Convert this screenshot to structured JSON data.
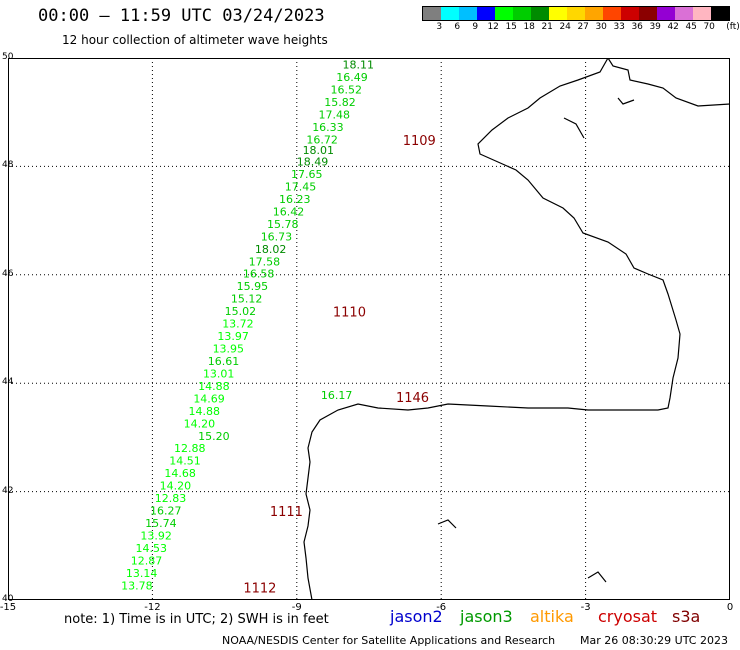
{
  "header": {
    "title": "00:00 – 11:59 UTC 03/24/2023",
    "subtitle": "12 hour collection of altimeter wave heights"
  },
  "colorbar": {
    "colors": [
      "#7f7f7f",
      "#00ffff",
      "#00bfff",
      "#0000ff",
      "#00ff00",
      "#00cd00",
      "#008b00",
      "#ffff00",
      "#ffd700",
      "#ffa500",
      "#ff4500",
      "#cd0000",
      "#8b0000",
      "#9400d3",
      "#da70d6",
      "#ffb6c1",
      "#000000"
    ],
    "labels": [
      "3",
      "6",
      "9",
      "12",
      "15",
      "18",
      "21",
      "24",
      "27",
      "30",
      "33",
      "36",
      "39",
      "42",
      "45",
      "70",
      "(ft)"
    ]
  },
  "axes": {
    "lon_ticks": [
      -15,
      -12,
      -9,
      -6,
      -3,
      0
    ],
    "lat_ticks": [
      40,
      42,
      44,
      46,
      48,
      50
    ],
    "lon_range": [
      -15,
      0
    ],
    "lat_range": [
      40,
      50
    ]
  },
  "tracks": [
    {
      "satellite": "jason3",
      "id_label": "1109",
      "points": [
        {
          "lat": 49.88,
          "lon": -8.05,
          "v": "18.11"
        },
        {
          "lat": 49.65,
          "lon": -8.18,
          "v": "16.49"
        },
        {
          "lat": 49.42,
          "lon": -8.3,
          "v": "16.52"
        },
        {
          "lat": 49.19,
          "lon": -8.43,
          "v": "15.82"
        },
        {
          "lat": 48.96,
          "lon": -8.55,
          "v": "17.48"
        },
        {
          "lat": 48.73,
          "lon": -8.68,
          "v": "16.33"
        },
        {
          "lat": 48.5,
          "lon": -8.8,
          "v": "16.72"
        },
        {
          "lat": 48.3,
          "lon": -8.88,
          "v": "18.01"
        },
        {
          "lat": 48.09,
          "lon": -9.0,
          "v": "18.49"
        },
        {
          "lat": 47.86,
          "lon": -9.12,
          "v": "17.65"
        },
        {
          "lat": 47.63,
          "lon": -9.25,
          "v": "17.45"
        },
        {
          "lat": 47.4,
          "lon": -9.37,
          "v": "16.23"
        },
        {
          "lat": 47.17,
          "lon": -9.5,
          "v": "16.42"
        },
        {
          "lat": 46.94,
          "lon": -9.62,
          "v": "15.78"
        },
        {
          "lat": 46.71,
          "lon": -9.75,
          "v": "16.73"
        },
        {
          "lat": 46.48,
          "lon": -9.87,
          "v": "18.02"
        },
        {
          "lat": 46.25,
          "lon": -10.0,
          "v": "17.58"
        },
        {
          "lat": 46.02,
          "lon": -10.12,
          "v": "16.58"
        },
        {
          "lat": 45.79,
          "lon": -10.25,
          "v": "15.95"
        },
        {
          "lat": 45.56,
          "lon": -10.37,
          "v": "15.12"
        },
        {
          "lat": 45.33,
          "lon": -10.5,
          "v": "15.02"
        }
      ]
    },
    {
      "satellite": "jason3",
      "id_label": "1110",
      "points": [
        {
          "lat": 45.1,
          "lon": -10.55,
          "v": "13.72"
        },
        {
          "lat": 44.87,
          "lon": -10.65,
          "v": "13.97"
        },
        {
          "lat": 44.64,
          "lon": -10.75,
          "v": "13.95"
        },
        {
          "lat": 44.41,
          "lon": -10.85,
          "v": "16.61"
        },
        {
          "lat": 44.18,
          "lon": -10.95,
          "v": "13.01"
        },
        {
          "lat": 43.95,
          "lon": -11.05,
          "v": "14.88"
        },
        {
          "lat": 43.72,
          "lon": -11.15,
          "v": "14.69"
        },
        {
          "lat": 43.49,
          "lon": -11.25,
          "v": "14.88"
        },
        {
          "lat": 43.26,
          "lon": -11.35,
          "v": "14.20"
        },
        {
          "lat": 43.03,
          "lon": -11.05,
          "v": "15.20"
        },
        {
          "lat": 42.8,
          "lon": -11.55,
          "v": "12.88"
        },
        {
          "lat": 42.57,
          "lon": -11.65,
          "v": "14.51"
        },
        {
          "lat": 42.34,
          "lon": -11.75,
          "v": "14.68"
        },
        {
          "lat": 42.11,
          "lon": -11.85,
          "v": "14.20"
        },
        {
          "lat": 41.88,
          "lon": -11.95,
          "v": "12.83"
        }
      ]
    },
    {
      "satellite": "jason3",
      "id_label": "1111",
      "points": [
        {
          "lat": 41.65,
          "lon": -12.05,
          "v": "16.27"
        },
        {
          "lat": 41.42,
          "lon": -12.15,
          "v": "15.74"
        },
        {
          "lat": 41.19,
          "lon": -12.25,
          "v": "13.92"
        },
        {
          "lat": 40.96,
          "lon": -12.35,
          "v": "14.53"
        },
        {
          "lat": 40.73,
          "lon": -12.45,
          "v": "12.87"
        },
        {
          "lat": 40.5,
          "lon": -12.55,
          "v": "13.14"
        },
        {
          "lat": 40.27,
          "lon": -12.65,
          "v": "13.78"
        }
      ]
    },
    {
      "satellite": "jason3",
      "id_label": "1146",
      "points": [
        {
          "lat": 43.78,
          "lon": -8.5,
          "v": "16.17"
        }
      ]
    }
  ],
  "track_labels": [
    {
      "text": "1109",
      "lat": 48.49,
      "lon": -6.8
    },
    {
      "text": "1110",
      "lat": 45.32,
      "lon": -8.25
    },
    {
      "text": "1146",
      "lat": 43.75,
      "lon": -6.94
    },
    {
      "text": "1111",
      "lat": 41.64,
      "lon": -9.56
    },
    {
      "text": "1112",
      "lat": 40.23,
      "lon": -10.11
    }
  ],
  "footer": {
    "note": "note: 1) Time is in UTC; 2) SWH is in feet",
    "legend": [
      {
        "name": "jason2",
        "color": "#0000cd"
      },
      {
        "name": "jason3",
        "color": "#009900"
      },
      {
        "name": "altika",
        "color": "#ff9900"
      },
      {
        "name": "cryosat",
        "color": "#cc0000"
      },
      {
        "name": "s3a",
        "color": "#800000"
      }
    ],
    "credit": "NOAA/NESDIS Center for Satellite Applications and Research",
    "timestamp": "Mar 26 08:30:29 UTC 2023"
  }
}
